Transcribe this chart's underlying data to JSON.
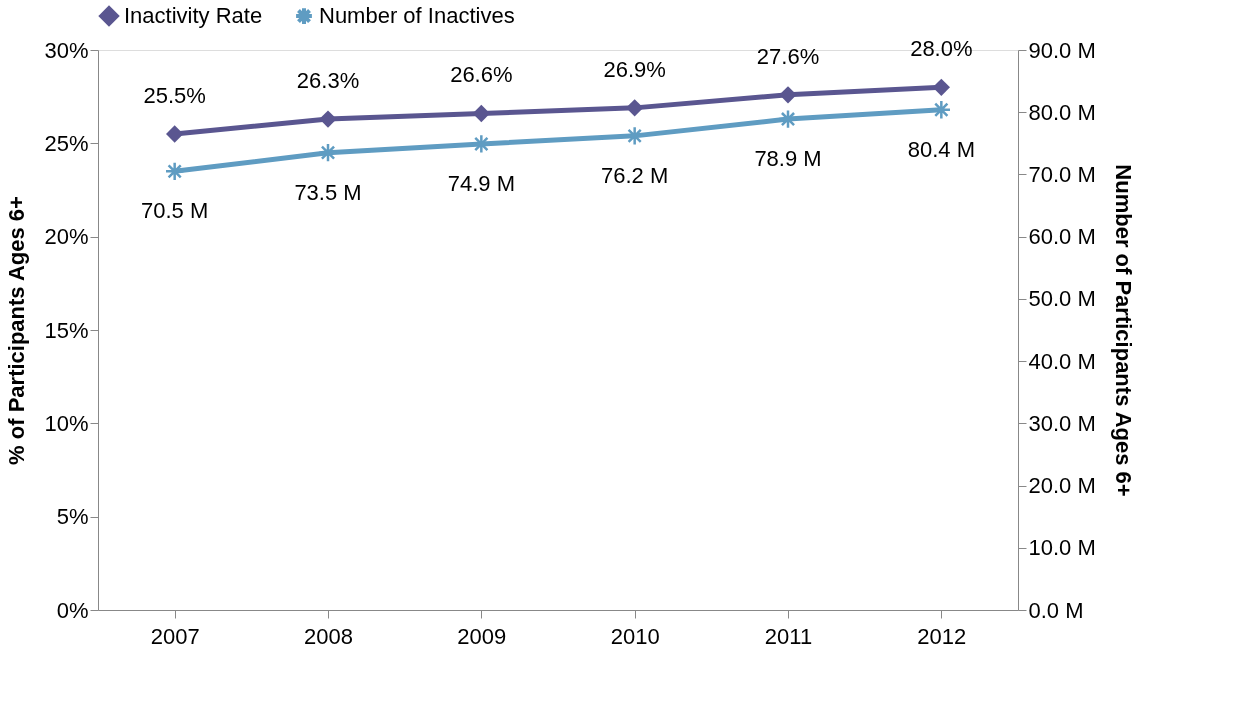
{
  "chart_data": {
    "type": "line",
    "ylabel": "% of Participants Ages 6+",
    "y2label": "Number of Participants Ages 6+",
    "categories": [
      "2007",
      "2008",
      "2009",
      "2010",
      "2011",
      "2012"
    ],
    "series": [
      {
        "name": "Inactivity Rate",
        "color": "#5a5690",
        "marker": "diamond",
        "values": [
          25.5,
          26.3,
          26.6,
          26.9,
          27.6,
          28.0
        ],
        "value_labels": [
          "25.5%",
          "26.3%",
          "26.6%",
          "26.9%",
          "27.6%",
          "28.0%"
        ]
      },
      {
        "name": "Number of Inactives",
        "color": "#5f9cc2",
        "marker": "cross",
        "axis": "y2",
        "values": [
          70.5,
          73.5,
          74.9,
          76.2,
          78.9,
          80.4
        ],
        "value_labels": [
          "70.5 M",
          "73.5 M",
          "74.9 M",
          "76.2 M",
          "78.9 M",
          "80.4 M"
        ]
      }
    ],
    "ylim": [
      0,
      30
    ],
    "yticks": [
      {
        "value": 0,
        "label": "0%"
      },
      {
        "value": 5,
        "label": "5%"
      },
      {
        "value": 10,
        "label": "10%"
      },
      {
        "value": 15,
        "label": "15%"
      },
      {
        "value": 20,
        "label": "20%"
      },
      {
        "value": 25,
        "label": "25%"
      },
      {
        "value": 30,
        "label": "30%"
      }
    ],
    "y2lim": [
      0,
      90
    ],
    "y2ticks": [
      {
        "value": 0,
        "label": "0.0 M"
      },
      {
        "value": 10,
        "label": "10.0 M"
      },
      {
        "value": 20,
        "label": "20.0 M"
      },
      {
        "value": 30,
        "label": "30.0 M"
      },
      {
        "value": 40,
        "label": "40.0 M"
      },
      {
        "value": 50,
        "label": "50.0 M"
      },
      {
        "value": 60,
        "label": "60.0 M"
      },
      {
        "value": 70,
        "label": "70.0 M"
      },
      {
        "value": 80,
        "label": "80.0 M"
      },
      {
        "value": 90,
        "label": "90.0 M"
      }
    ],
    "legend": "top",
    "grid": false,
    "line_style": "solid"
  }
}
